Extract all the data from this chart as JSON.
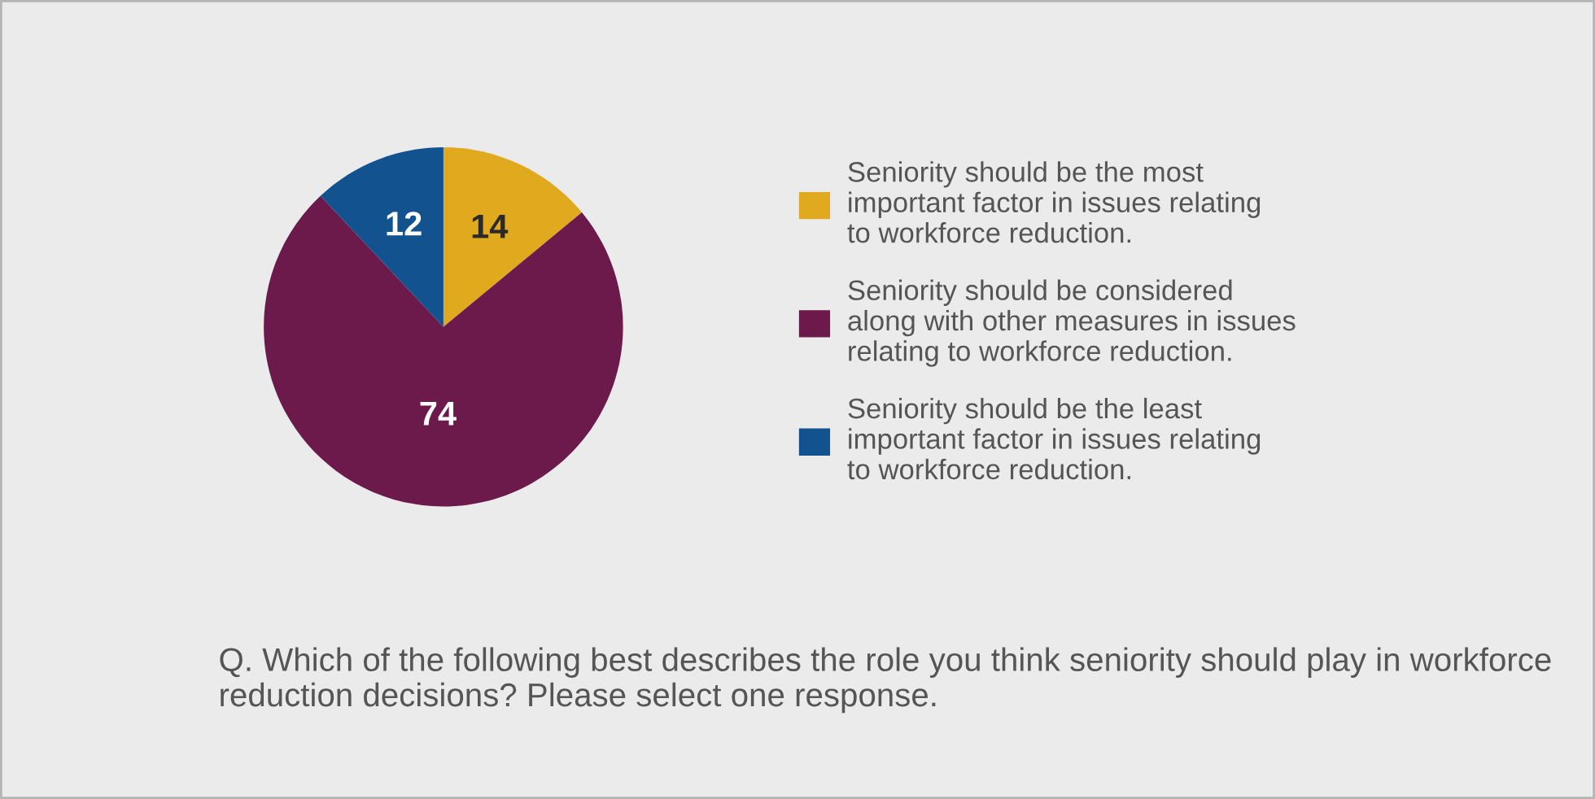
{
  "chart_data": {
    "type": "pie",
    "categories": [
      "Seniority should be the most\nimportant factor in issues relating\nto workforce reduction.",
      "Seniority should be considered\nalong with other measures in issues\nrelating to workforce reduction.",
      "Seniority should be the least\nimportant factor in issues relating\nto workforce reduction."
    ],
    "values": [
      14,
      74,
      12
    ],
    "colors": [
      "#e1a91d",
      "#6c1a4b",
      "#12538f"
    ],
    "data_labels": true,
    "legend": "right",
    "annotations": [
      "Q. Which of the following best describes the role you think seniority should play in workforce reduction decisions? Please select one response."
    ]
  }
}
